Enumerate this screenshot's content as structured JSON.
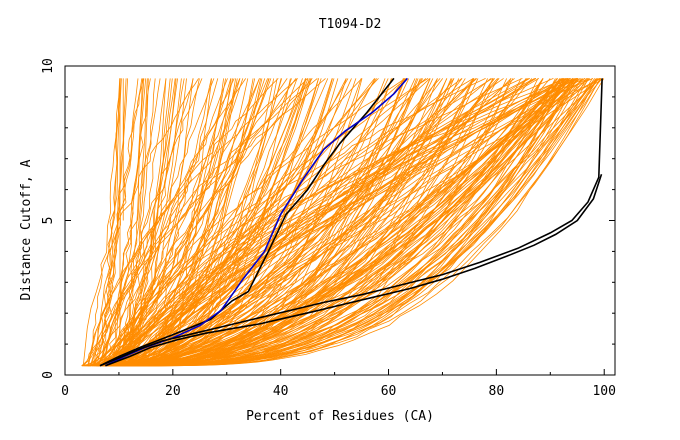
{
  "chart_data": {
    "type": "line",
    "title": "T1094-D2",
    "xlabel": "Percent of Residues (CA)",
    "ylabel": "Distance Cutoff, A",
    "xlim": [
      0,
      102
    ],
    "ylim": [
      0,
      10
    ],
    "xticks": [
      0,
      20,
      40,
      60,
      80,
      100
    ],
    "yticks": [
      0,
      5,
      10
    ],
    "colors": {
      "background_models": "#ff8c00",
      "highlight_black": "#000000",
      "highlight_blue": "#0000cc",
      "axes": "#000000"
    },
    "background_series": {
      "color": "#ff8c00",
      "description_of_families": "many orange model curves (cumulative distance vs. percent residues)",
      "families": [
        {
          "name": "steep-left",
          "x_start_range": [
            3,
            10
          ],
          "x_end_range": [
            10,
            38
          ],
          "count": 60
        },
        {
          "name": "mid",
          "x_start_range": [
            4,
            12
          ],
          "x_end_range": [
            38,
            70
          ],
          "count": 70
        },
        {
          "name": "wide",
          "x_start_range": [
            6,
            14
          ],
          "x_end_range": [
            70,
            96
          ],
          "count": 70
        },
        {
          "name": "flat-right",
          "x_start_range": [
            7,
            16
          ],
          "x_end_range": [
            92,
            100
          ],
          "count": 60
        }
      ]
    },
    "series": [
      {
        "name": "black-curve-1",
        "color": "#000000",
        "x": [
          6.5,
          10,
          14,
          20,
          27,
          31,
          34,
          36,
          38,
          41,
          45,
          48,
          51,
          56,
          61
        ],
        "y": [
          0.3,
          0.6,
          0.9,
          1.3,
          1.8,
          2.4,
          2.7,
          3.4,
          4.1,
          5.2,
          6.0,
          6.8,
          7.5,
          8.5,
          9.6
        ]
      },
      {
        "name": "blue-curve",
        "color": "#0000cc",
        "x": [
          7.5,
          11,
          15,
          20,
          25,
          29,
          33,
          37,
          40,
          44,
          48,
          52,
          57,
          61,
          63.5
        ],
        "y": [
          0.3,
          0.6,
          0.9,
          1.2,
          1.6,
          2.1,
          3.1,
          4.0,
          5.2,
          6.3,
          7.3,
          7.9,
          8.5,
          9.1,
          9.6
        ]
      },
      {
        "name": "black-curve-2",
        "color": "#000000",
        "x": [
          7.5,
          12,
          16,
          21,
          26,
          31,
          36,
          41,
          46,
          52,
          58,
          64,
          70,
          76,
          82,
          87,
          91,
          95,
          98,
          99.5
        ],
        "y": [
          0.3,
          0.6,
          0.9,
          1.15,
          1.35,
          1.5,
          1.65,
          1.85,
          2.05,
          2.3,
          2.55,
          2.8,
          3.1,
          3.45,
          3.85,
          4.2,
          4.55,
          5.0,
          5.7,
          6.5
        ]
      },
      {
        "name": "black-curve-3",
        "color": "#000000",
        "x": [
          6.5,
          10,
          14,
          18,
          24,
          30,
          36,
          42,
          48,
          55,
          62,
          70,
          77,
          84,
          90,
          94,
          97,
          99,
          99.6
        ],
        "y": [
          0.3,
          0.55,
          0.85,
          1.1,
          1.35,
          1.6,
          1.85,
          2.1,
          2.35,
          2.6,
          2.9,
          3.25,
          3.65,
          4.1,
          4.6,
          5.0,
          5.6,
          6.4,
          9.6
        ]
      }
    ]
  }
}
